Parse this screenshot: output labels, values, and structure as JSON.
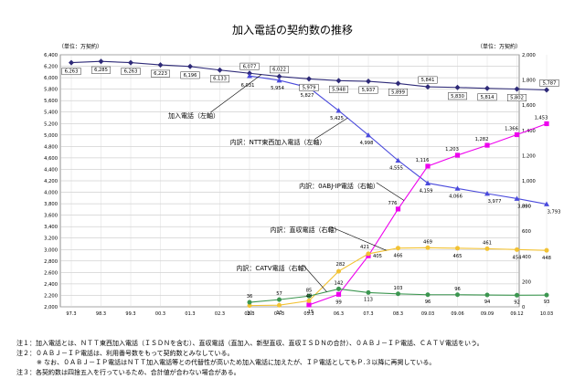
{
  "chart_data": {
    "type": "line",
    "title": "加入電話の契約数の推移",
    "left_unit": "（単位：万契約）",
    "right_unit": "（単位：万契約）",
    "categories": [
      "97.3",
      "98.3",
      "99.3",
      "00.3",
      "01.3",
      "02.3",
      "03.3",
      "04.3",
      "05.3",
      "06.3",
      "07.3",
      "08.3",
      "09.03",
      "09.06",
      "09.09",
      "09.12",
      "10.03"
    ],
    "y_left": {
      "min": 2000,
      "max": 6400,
      "step": 200
    },
    "y_right": {
      "min": 0,
      "max": 2000,
      "step": 200
    },
    "grid": true,
    "series": [
      {
        "name": "加入電話（左軸）",
        "axis": "left",
        "color": "#2e2a78",
        "marker": "diamond",
        "values": [
          6263,
          6285,
          6263,
          6223,
          6196,
          6133,
          6077,
          6022,
          5979,
          5948,
          5937,
          5899,
          5841,
          5830,
          5814,
          5802,
          5787
        ]
      },
      {
        "name": "内訳：NTT東西加入電話（左軸）",
        "axis": "left",
        "color": "#4a4adc",
        "marker": "triangle",
        "values": [
          null,
          null,
          null,
          null,
          null,
          null,
          6031,
          5954,
          5827,
          5425,
          4998,
          4555,
          4159,
          4066,
          3977,
          3890,
          3793
        ]
      },
      {
        "name": "内訳：0ABJ-IP電話（右軸）",
        "axis": "right",
        "color": "#ee00ee",
        "marker": "square",
        "values": [
          null,
          null,
          null,
          null,
          null,
          null,
          null,
          null,
          15,
          99,
          405,
          776,
          1116,
          1203,
          1282,
          1366,
          1453
        ]
      },
      {
        "name": "内訳：直収電話（右軸）",
        "axis": "right",
        "color": "#f2c233",
        "marker": "circle",
        "values": [
          null,
          null,
          null,
          null,
          null,
          null,
          10,
          13,
          48,
          282,
          421,
          466,
          469,
          465,
          461,
          454,
          448
        ]
      },
      {
        "name": "内訳：CATV電話（右軸）",
        "axis": "right",
        "color": "#3c9650",
        "marker": "circle",
        "values": [
          null,
          null,
          null,
          null,
          null,
          null,
          36,
          57,
          85,
          142,
          113,
          103,
          96,
          96,
          94,
          92,
          93
        ]
      }
    ]
  },
  "notes": [
    "注１：加入電話とは、ＮＴＴ東西加入電話（ＩＳＤＮを含む）、直収電話（直加入、新型直収、直収ＩＳＤＮの合計）、０ＡＢＪ－ＩＰ電話、ＣＡＴＶ電話をいう。",
    "注２：０ＡＢＪ－ＩＰ電話は、利用番号数をもって契約数とみなしている。",
    "※ なお、０ＡＢＪ－ＩＰ電話はＮＴＴ加入電話等との代替性が高いため加入電話に加えたが、ＩＰ電話としてもＰ.３以降に再掲している。",
    "注３：各契約数は四捨五入を行っているため、合計値が合わない場合がある。"
  ]
}
